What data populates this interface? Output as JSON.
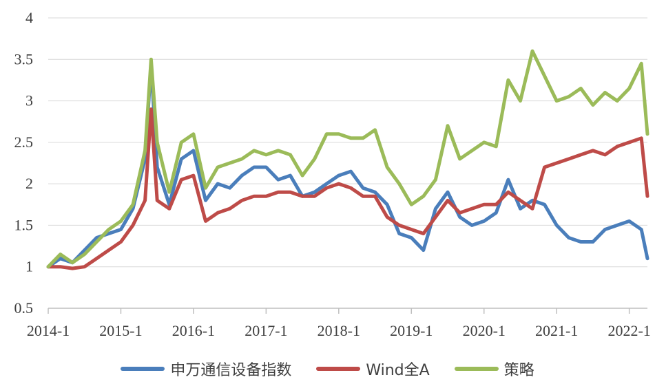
{
  "chart_data": {
    "type": "line",
    "title": "",
    "xlabel": "",
    "ylabel": "",
    "ylim": [
      0.5,
      4
    ],
    "yticks": [
      "0.5",
      "1",
      "1.5",
      "2",
      "2.5",
      "3",
      "3.5",
      "4"
    ],
    "xlim": [
      "2014-01",
      "2022-04"
    ],
    "xticks": [
      "2014-1",
      "2015-1",
      "2016-1",
      "2017-1",
      "2018-1",
      "2019-1",
      "2020-1",
      "2021-1",
      "2022-1"
    ],
    "grid": "horizontal",
    "legend": "bottom",
    "x": [
      "2014-01",
      "2014-03",
      "2014-05",
      "2014-07",
      "2014-09",
      "2014-11",
      "2015-01",
      "2015-03",
      "2015-05",
      "2015-06",
      "2015-07",
      "2015-09",
      "2015-11",
      "2016-01",
      "2016-03",
      "2016-05",
      "2016-07",
      "2016-09",
      "2016-11",
      "2017-01",
      "2017-03",
      "2017-05",
      "2017-07",
      "2017-09",
      "2017-11",
      "2018-01",
      "2018-03",
      "2018-05",
      "2018-07",
      "2018-09",
      "2018-11",
      "2019-01",
      "2019-03",
      "2019-05",
      "2019-07",
      "2019-09",
      "2019-11",
      "2020-01",
      "2020-03",
      "2020-05",
      "2020-07",
      "2020-09",
      "2020-11",
      "2021-01",
      "2021-03",
      "2021-05",
      "2021-07",
      "2021-09",
      "2021-11",
      "2022-01",
      "2022-03",
      "2022-04"
    ],
    "series": [
      {
        "name": "申万通信设备指数",
        "color": "#4a7ebb",
        "values": [
          1.0,
          1.1,
          1.05,
          1.2,
          1.35,
          1.4,
          1.45,
          1.7,
          2.3,
          3.45,
          2.2,
          1.75,
          2.3,
          2.4,
          1.8,
          2.0,
          1.95,
          2.1,
          2.2,
          2.2,
          2.05,
          2.1,
          1.85,
          1.9,
          2.0,
          2.1,
          2.15,
          1.95,
          1.9,
          1.75,
          1.4,
          1.35,
          1.2,
          1.7,
          1.9,
          1.6,
          1.5,
          1.55,
          1.65,
          2.05,
          1.7,
          1.8,
          1.75,
          1.5,
          1.35,
          1.3,
          1.3,
          1.45,
          1.5,
          1.55,
          1.45,
          1.1
        ]
      },
      {
        "name": "Wind全A",
        "color": "#be4b48",
        "values": [
          1.0,
          1.0,
          0.98,
          1.0,
          1.1,
          1.2,
          1.3,
          1.5,
          1.8,
          2.9,
          1.8,
          1.7,
          2.05,
          2.1,
          1.55,
          1.65,
          1.7,
          1.8,
          1.85,
          1.85,
          1.9,
          1.9,
          1.85,
          1.85,
          1.95,
          2.0,
          1.95,
          1.85,
          1.85,
          1.6,
          1.5,
          1.45,
          1.4,
          1.6,
          1.8,
          1.65,
          1.7,
          1.75,
          1.75,
          1.9,
          1.8,
          1.7,
          2.2,
          2.25,
          2.3,
          2.35,
          2.4,
          2.35,
          2.45,
          2.5,
          2.55,
          1.85
        ]
      },
      {
        "name": "策略",
        "color": "#9bbb59",
        "values": [
          1.0,
          1.15,
          1.05,
          1.15,
          1.3,
          1.45,
          1.55,
          1.75,
          2.4,
          3.5,
          2.5,
          1.9,
          2.5,
          2.6,
          1.95,
          2.2,
          2.25,
          2.3,
          2.4,
          2.35,
          2.4,
          2.35,
          2.1,
          2.3,
          2.6,
          2.6,
          2.55,
          2.55,
          2.65,
          2.2,
          2.0,
          1.75,
          1.85,
          2.05,
          2.7,
          2.3,
          2.4,
          2.5,
          2.45,
          3.25,
          3.0,
          3.6,
          3.3,
          3.0,
          3.05,
          3.15,
          2.95,
          3.1,
          3.0,
          3.15,
          3.45,
          2.6
        ]
      }
    ]
  }
}
